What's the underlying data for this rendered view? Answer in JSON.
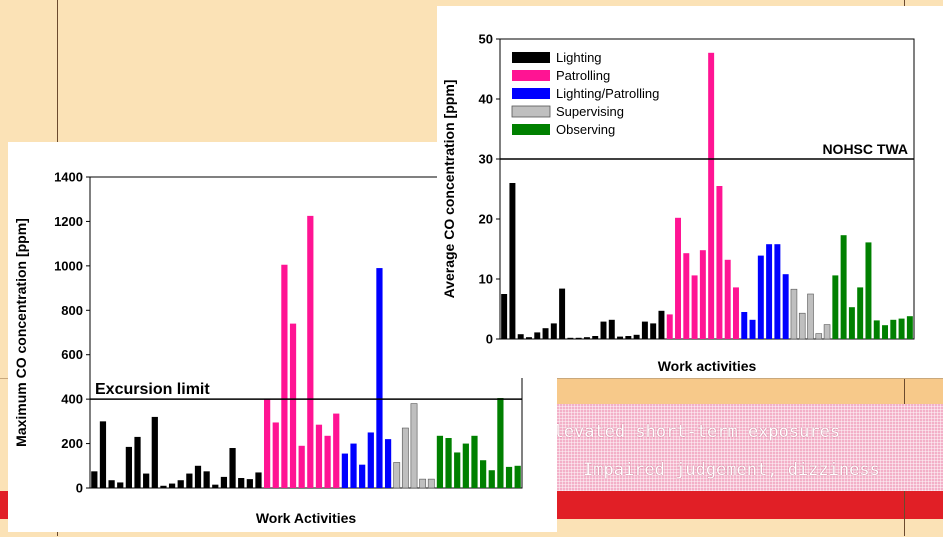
{
  "colors": {
    "background": "#fbe2b6",
    "accent_red": "#e11f26",
    "Lighting": "#000000",
    "Patrolling": "#ff1493",
    "Lighting/Patrolling": "#0000ff",
    "Supervising": "#bfbfbf",
    "Observing": "#008000"
  },
  "callout": {
    "bullet_icon": "arrow-bullet-icon",
    "line1": "Elevated short-term exposures",
    "line2": "Impaired judgement, dizziness"
  },
  "chart_data": [
    {
      "type": "bar",
      "name": "left",
      "xlabel": "Work Activities",
      "ylabel": "Maximum CO concentration [ppm]",
      "ylim": [
        0,
        1400
      ],
      "yticks": [
        "0",
        "200",
        "400",
        "600",
        "800",
        "1000",
        "1200",
        "1400"
      ],
      "reference_line": {
        "label": "Excursion limit",
        "value": 400
      },
      "series": [
        {
          "name": "Lighting",
          "values": [
            75,
            300,
            35,
            25,
            185,
            230,
            65,
            320,
            10,
            20,
            35,
            65,
            100,
            75,
            15,
            50,
            180,
            45,
            40,
            70
          ]
        },
        {
          "name": "Patrolling",
          "values": [
            400,
            295,
            1005,
            740,
            190,
            1225,
            285,
            235,
            335
          ]
        },
        {
          "name": "Lighting/Patrolling",
          "values": [
            155,
            200,
            105,
            250,
            990,
            220
          ]
        },
        {
          "name": "Supervising",
          "values": [
            115,
            270,
            380,
            40,
            40
          ]
        },
        {
          "name": "Observing",
          "values": [
            235,
            225,
            160,
            200,
            235,
            125,
            80,
            405,
            95,
            100
          ]
        }
      ]
    },
    {
      "type": "bar",
      "name": "right",
      "xlabel": "Work activities",
      "ylabel": "Average CO concentration [ppm]",
      "ylim": [
        0,
        50
      ],
      "yticks": [
        "0",
        "10",
        "20",
        "30",
        "40",
        "50"
      ],
      "reference_line": {
        "label": "NOHSC TWA",
        "value": 30
      },
      "legend_position": "top-left",
      "series": [
        {
          "name": "Lighting",
          "values": [
            7.5,
            26,
            0.8,
            0.3,
            1.1,
            1.8,
            2.6,
            8.4,
            0.2,
            0.2,
            0.3,
            0.5,
            2.9,
            3.2,
            0.4,
            0.5,
            0.7,
            2.9,
            2.6,
            4.7
          ]
        },
        {
          "name": "Patrolling",
          "values": [
            4.1,
            20.2,
            14.3,
            10.6,
            14.8,
            47.7,
            25.5,
            13.2,
            8.6
          ]
        },
        {
          "name": "Lighting/Patrolling",
          "values": [
            4.5,
            3.2,
            13.9,
            15.8,
            15.8,
            10.8
          ]
        },
        {
          "name": "Supervising",
          "values": [
            8.3,
            4.3,
            7.5,
            0.9,
            2.4
          ]
        },
        {
          "name": "Observing",
          "values": [
            10.6,
            17.3,
            5.3,
            8.6,
            16.1,
            3.1,
            2.3,
            3.2,
            3.4,
            3.8
          ]
        }
      ]
    }
  ]
}
